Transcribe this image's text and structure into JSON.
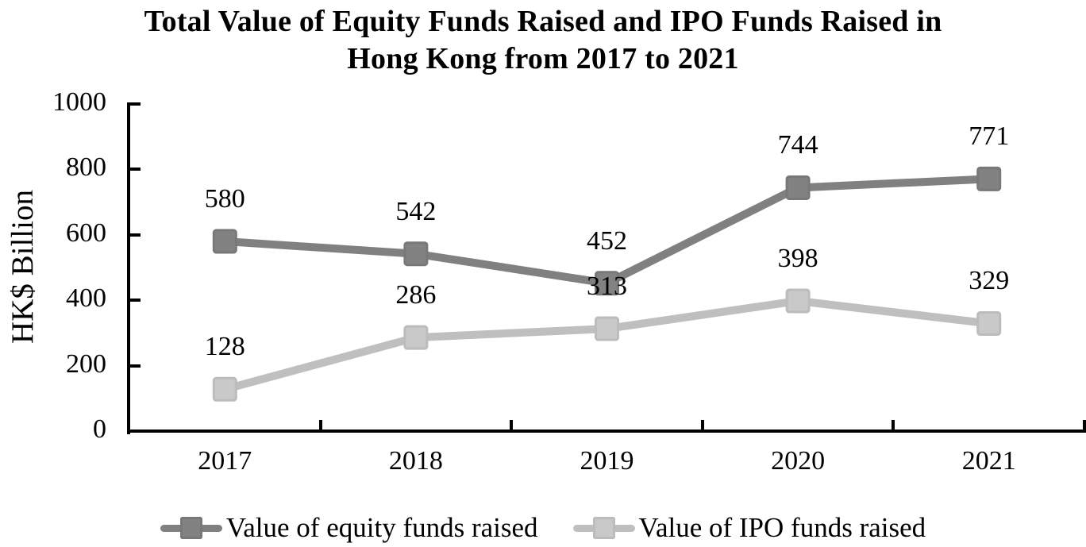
{
  "header": {
    "title_line1": "Total Value of Equity Funds Raised and IPO Funds Raised in",
    "title_line2": "Hong Kong from 2017 to 2021"
  },
  "chart_data": {
    "type": "line",
    "title": "Total Value of Equity Funds Raised and IPO Funds Raised in Hong Kong from 2017 to 2021",
    "categories": [
      "2017",
      "2018",
      "2019",
      "2020",
      "2021"
    ],
    "series": [
      {
        "name": "Value of equity funds raised",
        "values": [
          580,
          542,
          452,
          744,
          771
        ],
        "color": "#808080",
        "marker_fill": "#828282",
        "marker_stroke": "#787878"
      },
      {
        "name": "Value of IPO funds raised",
        "values": [
          128,
          286,
          313,
          398,
          329
        ],
        "color": "#BFBFBF",
        "marker_fill": "#C9C9C9",
        "marker_stroke": "#BCBCBC"
      }
    ],
    "xlabel": "",
    "ylabel": "HK$ Billion",
    "ylim": [
      0,
      1000
    ],
    "yticks": [
      0,
      200,
      400,
      600,
      800,
      1000
    ],
    "grid": false,
    "legend_position": "bottom",
    "data_labels": true,
    "axis_color": "#000000",
    "text_color": "#000000",
    "marker_shape": "square"
  }
}
